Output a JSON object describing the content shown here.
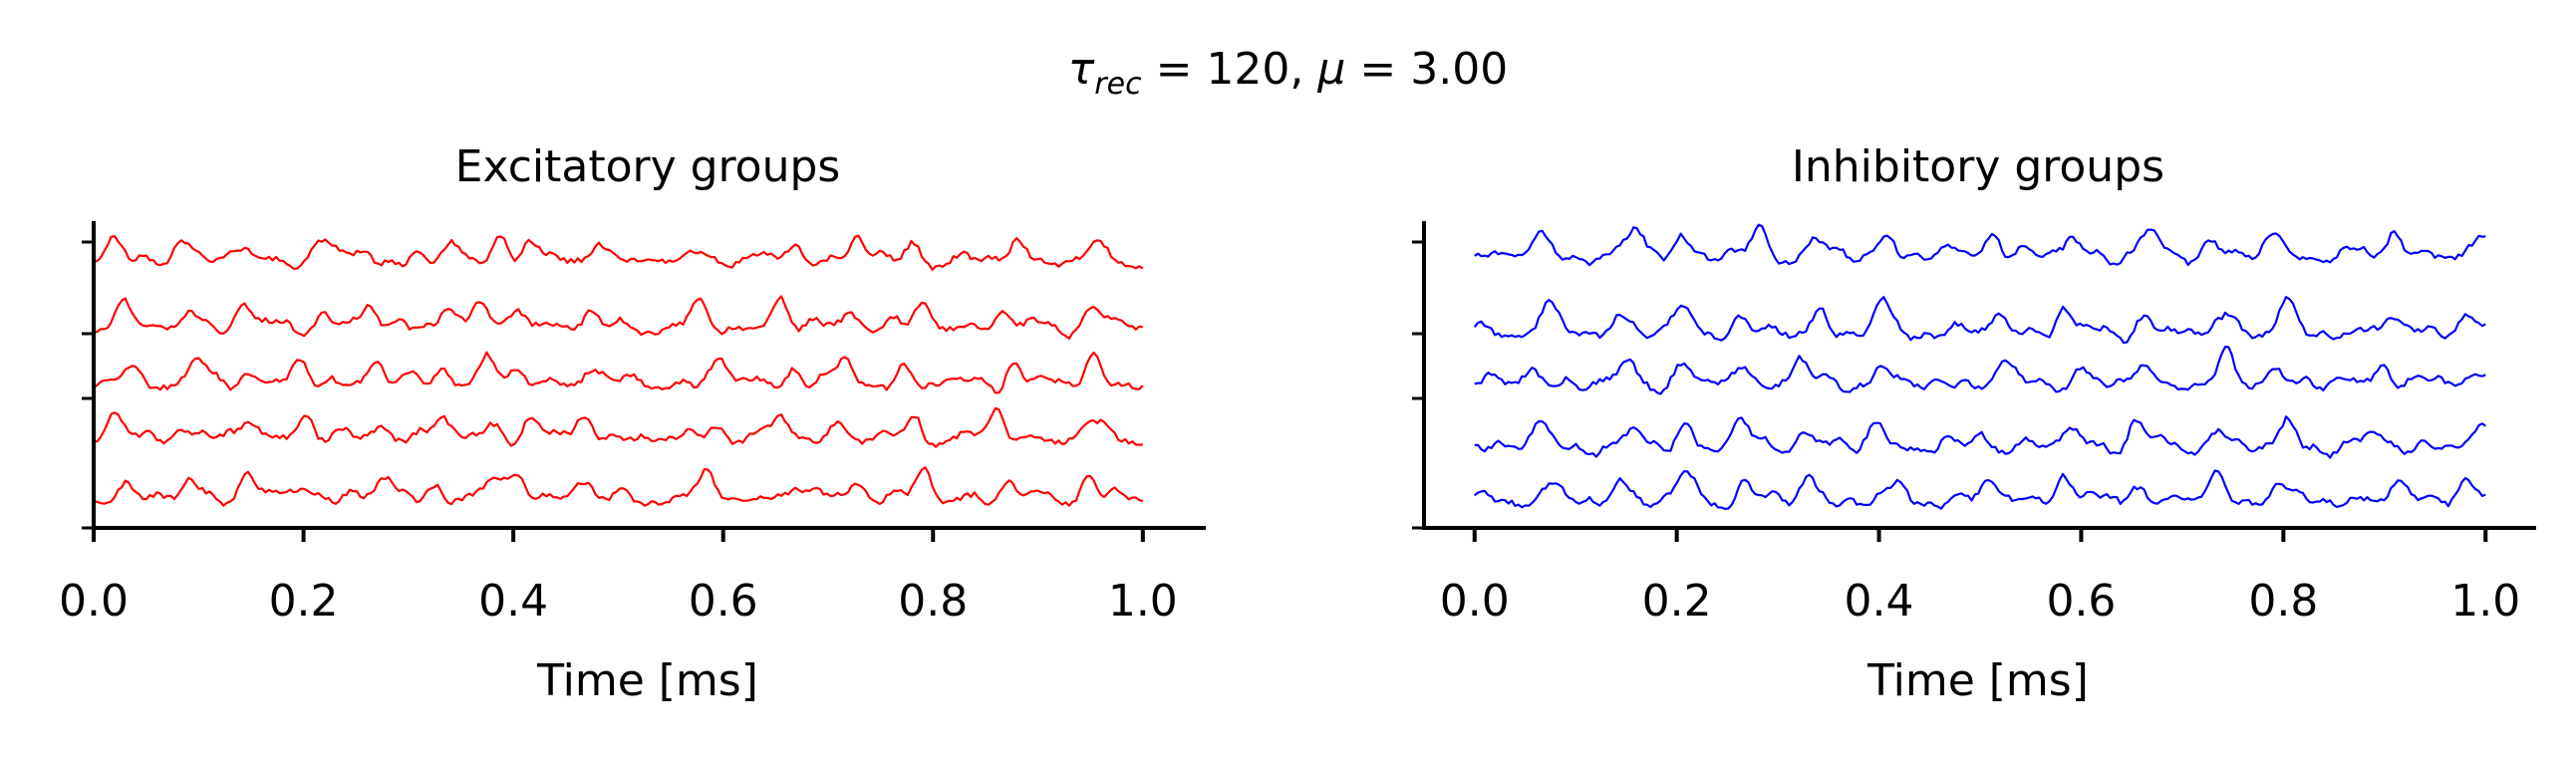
{
  "figure": {
    "suptitle": {
      "tau_symbol": "τ",
      "tau_subscript": "rec",
      "tau_rest": " = 120, ",
      "mu_symbol": "μ",
      "mu_rest": " = 3.00"
    }
  },
  "chart_data": [
    {
      "type": "line",
      "title": "Excitatory groups",
      "xlabel": "Time [ms]",
      "ylabel": "",
      "xlim": [
        0.0,
        1.06
      ],
      "xticks": [
        "0.0",
        "0.2",
        "0.4",
        "0.6",
        "0.8",
        "1.0"
      ],
      "xtick_values": [
        0.0,
        0.2,
        0.4,
        0.6,
        0.8,
        1.0
      ],
      "yticks": [
        "",
        "",
        "",
        ""
      ],
      "color": "#ff0000",
      "n_traces": 5,
      "x_range": [
        0.0,
        1.0
      ],
      "n_samples": 300,
      "peaks_ms": [
        0.025,
        0.09,
        0.15,
        0.21,
        0.27,
        0.33,
        0.38,
        0.41,
        0.47,
        0.59,
        0.66,
        0.72,
        0.78,
        0.87,
        0.96
      ]
    },
    {
      "type": "line",
      "title": "Inhibitory groups",
      "xlabel": "Time [ms]",
      "ylabel": "",
      "xlim": [
        -0.05,
        1.05
      ],
      "xticks": [
        "0.0",
        "0.2",
        "0.4",
        "0.6",
        "0.8",
        "1.0"
      ],
      "xtick_values": [
        0.0,
        0.2,
        0.4,
        0.6,
        0.8,
        1.0
      ],
      "yticks": [
        "",
        "",
        "",
        ""
      ],
      "color": "#0000ff",
      "n_traces": 5,
      "x_range": [
        0.0,
        1.0
      ],
      "n_samples": 300,
      "peaks_ms": [
        0.06,
        0.15,
        0.21,
        0.27,
        0.33,
        0.41,
        0.51,
        0.59,
        0.66,
        0.74,
        0.8,
        0.9,
        0.99
      ]
    }
  ]
}
